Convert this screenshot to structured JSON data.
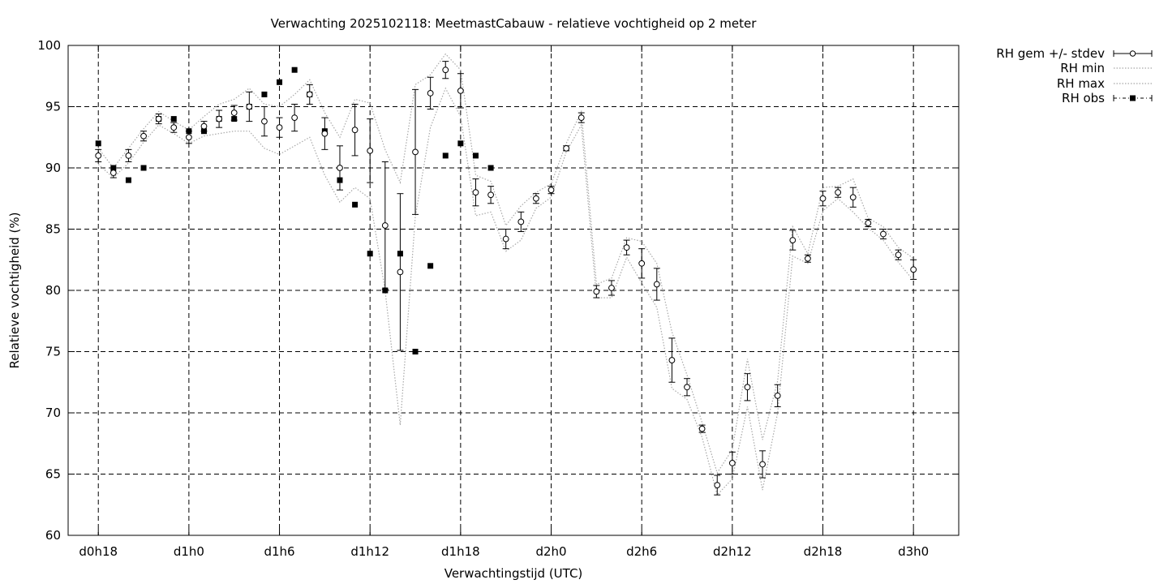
{
  "chart_data": {
    "type": "scatter",
    "title": "Verwachting 2025102118: MeetmastCabauw - relatieve vochtigheid op 2 meter",
    "xlabel": "Verwachtingstijd (UTC)",
    "ylabel": "Relatieve vochtigheid (%)",
    "xlim": [
      16,
      75
    ],
    "ylim": [
      60,
      100
    ],
    "x_unit": "hours since d0h0",
    "x_ticks": [
      {
        "x": 18,
        "label": "d0h18"
      },
      {
        "x": 24,
        "label": "d1h0"
      },
      {
        "x": 30,
        "label": "d1h6"
      },
      {
        "x": 36,
        "label": "d1h12"
      },
      {
        "x": 42,
        "label": "d1h18"
      },
      {
        "x": 48,
        "label": "d2h0"
      },
      {
        "x": 54,
        "label": "d2h6"
      },
      {
        "x": 60,
        "label": "d2h12"
      },
      {
        "x": 66,
        "label": "d2h18"
      },
      {
        "x": 72,
        "label": "d3h0"
      }
    ],
    "y_ticks": [
      60,
      65,
      70,
      75,
      80,
      85,
      90,
      95,
      100
    ],
    "grid": true,
    "legend_position": "outside-top-right",
    "legend": [
      "RH gem +/- stdev",
      "RH min",
      "RH max",
      "RH obs"
    ],
    "series": [
      {
        "name": "RH gem +/- stdev",
        "x": [
          18,
          19,
          20,
          21,
          22,
          23,
          24,
          25,
          26,
          27,
          28,
          29,
          30,
          31,
          32,
          33,
          34,
          35,
          36,
          37,
          38,
          39,
          40,
          41,
          42,
          43,
          44,
          45,
          46,
          47,
          48,
          49,
          50,
          51,
          52,
          53,
          54,
          55,
          56,
          57,
          58,
          59,
          60,
          61,
          62,
          63,
          64,
          65,
          66,
          67,
          68,
          69,
          70,
          71,
          72
        ],
        "mean": [
          91,
          89.6,
          91,
          92.6,
          94,
          93.3,
          92.5,
          93.4,
          94,
          94.5,
          95,
          93.8,
          93.3,
          94.1,
          96,
          92.8,
          90,
          93.1,
          91.4,
          85.3,
          81.5,
          91.3,
          96.1,
          98,
          96.3,
          88,
          87.8,
          84.2,
          85.6,
          87.5,
          88.2,
          91.6,
          94.1,
          79.9,
          80.2,
          83.5,
          82.2,
          80.5,
          74.3,
          72.1,
          68.7,
          64.1,
          65.9,
          72.1,
          65.8,
          71.4,
          84.1,
          82.6,
          87.5,
          88,
          87.6,
          85.5,
          84.6,
          82.9,
          81.7
        ],
        "stdev": [
          0.5,
          0.4,
          0.5,
          0.4,
          0.4,
          0.4,
          0.5,
          0.4,
          0.7,
          0.6,
          1.2,
          1.2,
          0.8,
          1.1,
          0.8,
          1.3,
          1.8,
          2.1,
          2.6,
          5.2,
          6.4,
          5.1,
          1.3,
          0.7,
          1.4,
          1.1,
          0.7,
          0.8,
          0.8,
          0.4,
          0.3,
          0.2,
          0.4,
          0.5,
          0.6,
          0.6,
          1.2,
          1.3,
          1.8,
          0.7,
          0.3,
          0.8,
          0.9,
          1.1,
          1.1,
          0.9,
          0.8,
          0.3,
          0.6,
          0.4,
          0.8,
          0.3,
          0.4,
          0.4,
          0.8
        ]
      },
      {
        "name": "RH min",
        "x": [
          18,
          19,
          20,
          21,
          22,
          23,
          24,
          25,
          26,
          27,
          28,
          29,
          30,
          31,
          32,
          33,
          34,
          35,
          36,
          37,
          38,
          39,
          40,
          41,
          42,
          43,
          44,
          45,
          46,
          47,
          48,
          49,
          50,
          51,
          52,
          53,
          54,
          55,
          56,
          57,
          58,
          59,
          60,
          61,
          62,
          63,
          64,
          65,
          66,
          67,
          68,
          69,
          70,
          71,
          72
        ],
        "values": [
          90.3,
          89.2,
          90.4,
          92.1,
          93.5,
          92.8,
          92,
          92.6,
          92.8,
          93,
          93,
          91.6,
          91.1,
          91.8,
          92.5,
          89.4,
          87.2,
          88.4,
          87.5,
          80,
          69,
          86,
          93.3,
          96.5,
          94.2,
          86.1,
          86.4,
          83.2,
          84.1,
          86.7,
          87.6,
          91.3,
          93.5,
          79.4,
          79.4,
          82.7,
          80.6,
          78.6,
          72,
          71.1,
          68,
          63.3,
          64.6,
          70.5,
          63.7,
          70,
          82.8,
          82.2,
          86.5,
          87.5,
          86.4,
          85.1,
          84.1,
          82.3,
          80.8
        ]
      },
      {
        "name": "RH max",
        "x": [
          18,
          19,
          20,
          21,
          22,
          23,
          24,
          25,
          26,
          27,
          28,
          29,
          30,
          31,
          32,
          33,
          34,
          35,
          36,
          37,
          38,
          39,
          40,
          41,
          42,
          43,
          44,
          45,
          46,
          47,
          48,
          49,
          50,
          51,
          52,
          53,
          54,
          55,
          56,
          57,
          58,
          59,
          60,
          61,
          62,
          63,
          64,
          65,
          66,
          67,
          68,
          69,
          70,
          71,
          72
        ],
        "values": [
          91.6,
          90,
          91.6,
          93.2,
          94.6,
          93.8,
          93.1,
          94.2,
          95.2,
          95.6,
          96.5,
          95.2,
          95,
          96,
          97.2,
          94.5,
          92.5,
          95.6,
          95.3,
          91.5,
          88.8,
          96.8,
          97.6,
          99.3,
          98,
          89.4,
          88.9,
          85.3,
          86.9,
          88,
          88.7,
          92,
          94.6,
          80.5,
          81,
          84.3,
          84,
          82.2,
          76.6,
          73.1,
          69.2,
          65.1,
          67,
          74.4,
          67.8,
          72.6,
          85.2,
          83,
          88.4,
          88.5,
          89.1,
          85.9,
          85.2,
          83.5,
          82.6
        ]
      },
      {
        "name": "RH obs",
        "x": [
          18,
          19,
          20,
          21,
          22,
          23,
          24,
          25,
          26,
          27,
          28,
          29,
          30,
          31,
          32,
          33,
          34,
          35,
          36,
          37,
          38,
          39,
          40,
          41,
          42,
          43,
          44
        ],
        "values": [
          92,
          90,
          89,
          90,
          94,
          94,
          93,
          93,
          94,
          94,
          95,
          96,
          97,
          98,
          96,
          93,
          89,
          87,
          83,
          80,
          83,
          75,
          82,
          91,
          92,
          91,
          90
        ]
      }
    ]
  }
}
